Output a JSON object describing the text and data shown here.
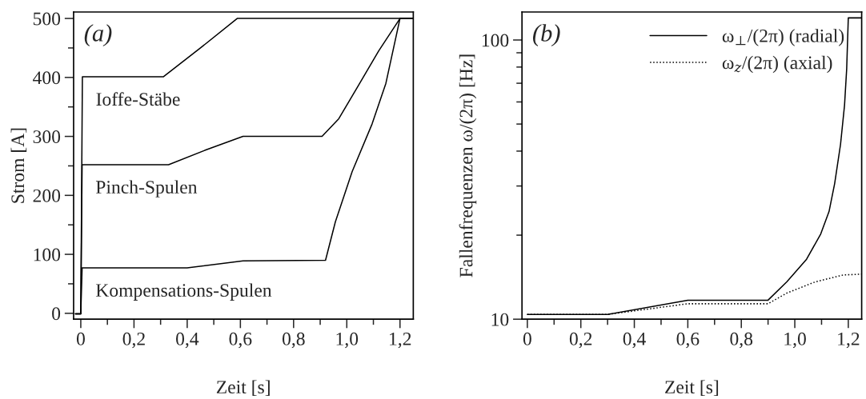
{
  "chart_data": [
    {
      "type": "line",
      "xlabel": "Zeit [s]",
      "ylabel": "Strom [A]",
      "annotations": [
        "(a)"
      ],
      "xlim": [
        -0.027,
        1.25
      ],
      "ylim": [
        -10,
        511
      ],
      "xticks": [
        0,
        {
          "value": 0.2,
          "label": "0,2"
        },
        {
          "value": 0.4,
          "label": "0,4"
        },
        {
          "value": 0.6,
          "label": "0,6"
        },
        {
          "value": 0.8,
          "label": "0,8"
        },
        {
          "value": 1.0,
          "label": "1,0"
        },
        {
          "value": 1.2,
          "label": "1,2"
        }
      ],
      "yticks": [
        0,
        100,
        200,
        300,
        400,
        500
      ],
      "grid": false,
      "legend": false,
      "line_style": "solid",
      "marker": "none",
      "series": [
        {
          "name": "Ioffe-Stäbe",
          "color": "#000000",
          "x": [
            -0.02,
            0.0,
            0.006,
            0.31,
            0.45,
            0.588,
            1.25
          ],
          "values": [
            -1,
            -1,
            401,
            401,
            450,
            500,
            500
          ]
        },
        {
          "name": "Pinch-Spulen",
          "color": "#000000",
          "x": [
            -0.02,
            0.0,
            0.005,
            0.33,
            0.47,
            0.61,
            0.907,
            0.97,
            1.042,
            1.12,
            1.2,
            1.25
          ],
          "values": [
            -1,
            -1,
            252,
            252,
            277,
            300,
            300,
            330,
            385,
            445,
            500,
            500
          ]
        },
        {
          "name": "Kompensations-Spulen",
          "color": "#000000",
          "x": [
            -0.02,
            0.0,
            0.005,
            0.4,
            0.61,
            0.92,
            0.957,
            1.02,
            1.095,
            1.147,
            1.2,
            1.25
          ],
          "values": [
            -1,
            -1,
            77,
            77,
            89,
            90,
            155,
            240,
            321,
            390,
            500,
            500
          ]
        }
      ]
    },
    {
      "type": "line",
      "xlabel": "Zeit [s]",
      "ylabel": "Fallenfrequenzen ω/(2π) [Hz]",
      "annotations": [
        "(b)"
      ],
      "xlim": [
        -0.02,
        1.25
      ],
      "ylim": [
        10,
        126
      ],
      "log": "y",
      "xticks": [
        0,
        {
          "value": 0.2,
          "label": "0,2"
        },
        {
          "value": 0.4,
          "label": "0,4"
        },
        {
          "value": 0.6,
          "label": "0,6"
        },
        {
          "value": 0.8,
          "label": "0,8"
        },
        {
          "value": 1.0,
          "label": "1,0"
        },
        {
          "value": 1.2,
          "label": "1,2"
        }
      ],
      "yticks": [
        10,
        100
      ],
      "grid": false,
      "legend": "top right",
      "marker": "none",
      "series": [
        {
          "name": "ω$_{⊥}$/(2π) (radial)",
          "color": "#000000",
          "line_style": "solid",
          "x": [
            0,
            0.3,
            0.6,
            0.9,
            0.97,
            1.044,
            1.097,
            1.128,
            1.149,
            1.171,
            1.186,
            1.194,
            1.2,
            1.25
          ],
          "values": [
            10.4,
            10.4,
            11.7,
            11.7,
            13.6,
            16.4,
            20.2,
            24.3,
            30.6,
            42.3,
            58.5,
            78.9,
            120,
            120
          ]
        },
        {
          "name": "ω$_{z}$/(2π) (axial)",
          "color": "#000000",
          "line_style": "dotted",
          "x": [
            0,
            0.3,
            0.6,
            0.9,
            0.97,
            1.076,
            1.181,
            1.25
          ],
          "values": [
            10.4,
            10.4,
            11.36,
            11.36,
            12.4,
            13.6,
            14.4,
            14.5
          ]
        }
      ]
    }
  ]
}
